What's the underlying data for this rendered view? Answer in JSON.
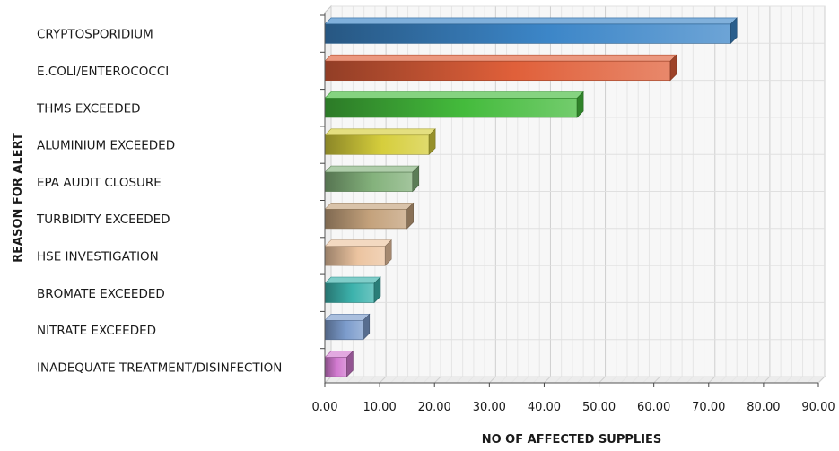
{
  "chart_data": {
    "type": "bar",
    "orientation": "horizontal",
    "style": "3d",
    "title": "",
    "xlabel": "NO OF AFFECTED SUPPLIES",
    "ylabel": "REASON FOR ALERT",
    "xlim": [
      0,
      90
    ],
    "x_ticks": [
      "0.00",
      "10.00",
      "20.00",
      "30.00",
      "40.00",
      "50.00",
      "60.00",
      "70.00",
      "80.00",
      "90.00"
    ],
    "grid": true,
    "legend": "none",
    "categories": [
      "CRYPTOSPORIDIUM",
      "E.COLI/ENTEROCOCCI",
      "THMS EXCEEDED",
      "ALUMINIUM EXCEEDED",
      "EPA AUDIT CLOSURE",
      "TURBIDITY EXCEEDED",
      "HSE INVESTIGATION",
      "BROMATE EXCEEDED",
      "NITRATE EXCEEDED",
      "INADEQUATE TREATMENT/DISINFECTION"
    ],
    "values": [
      74,
      63,
      46,
      19,
      16,
      15,
      11,
      9,
      7,
      4
    ],
    "colors": [
      "#3c86c8",
      "#e0603a",
      "#44bb3c",
      "#d6ce3c",
      "#84b27c",
      "#c4a27c",
      "#ecc4a0",
      "#3cb2ac",
      "#7c9ccc",
      "#d27ad0"
    ]
  }
}
